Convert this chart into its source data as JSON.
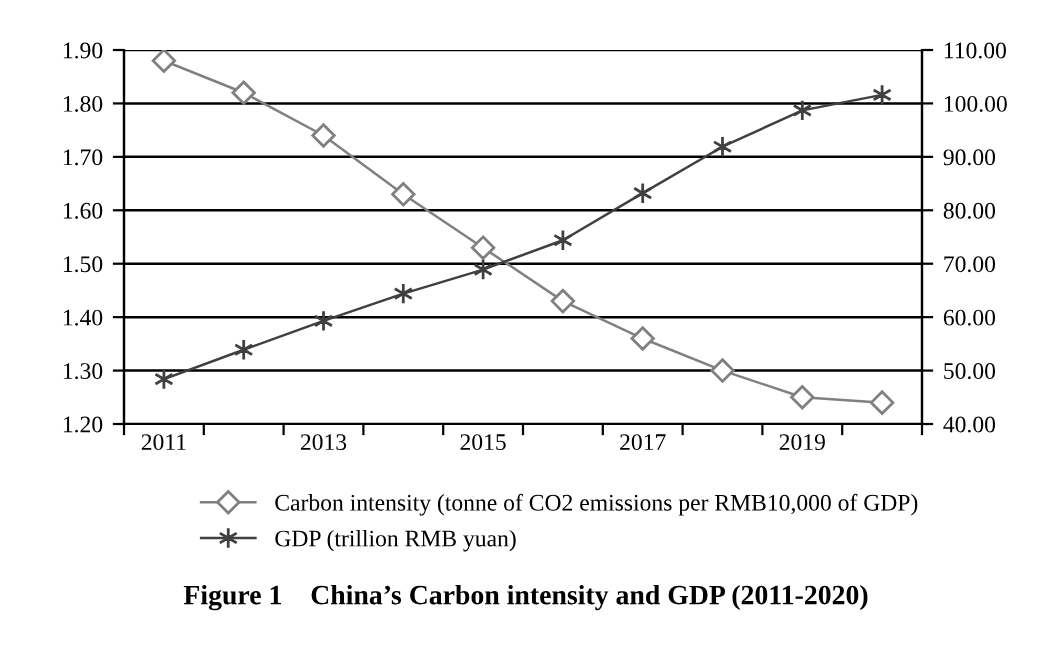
{
  "chart_data": {
    "type": "line",
    "title": "Figure 1    China’s Carbon intensity and GDP (2011-2020)",
    "categories": [
      "2011",
      null,
      "2013",
      null,
      "2015",
      null,
      "2017",
      null,
      "2019",
      null
    ],
    "series": [
      {
        "name": "Carbon intensity (tonne of CO2 emissions per RMB10,000 of GDP)",
        "color": "#808080",
        "marker": "diamond",
        "values": [
          1.88,
          1.82,
          1.74,
          1.63,
          1.53,
          1.43,
          1.36,
          1.3,
          1.25,
          1.24
        ]
      },
      {
        "name": "GDP (trillion RMB yuan)",
        "color": "#404040",
        "marker": "cross",
        "axis": "y2",
        "values": [
          48.4,
          53.9,
          59.3,
          64.4,
          68.9,
          74.4,
          83.2,
          91.9,
          98.7,
          101.6
        ]
      }
    ],
    "ylim": [
      1.2,
      1.9
    ],
    "yticks": [
      {
        "value": 1.2,
        "label": "1.20"
      },
      {
        "value": 1.3,
        "label": "1.30"
      },
      {
        "value": 1.4,
        "label": "1.40"
      },
      {
        "value": 1.5,
        "label": "1.50"
      },
      {
        "value": 1.6,
        "label": "1.60"
      },
      {
        "value": 1.7,
        "label": "1.70"
      },
      {
        "value": 1.8,
        "label": "1.80"
      },
      {
        "value": 1.9,
        "label": "1.90"
      }
    ],
    "y2lim": [
      40,
      110
    ],
    "y2ticks": [
      {
        "value": 40,
        "label": "40.00"
      },
      {
        "value": 50,
        "label": "50.00"
      },
      {
        "value": 60,
        "label": "60.00"
      },
      {
        "value": 70,
        "label": "70.00"
      },
      {
        "value": 80,
        "label": "80.00"
      },
      {
        "value": 90,
        "label": "90.00"
      },
      {
        "value": 100,
        "label": "100.00"
      },
      {
        "value": 110,
        "label": "110.00"
      }
    ],
    "grid": "y",
    "legend": "bottom"
  }
}
